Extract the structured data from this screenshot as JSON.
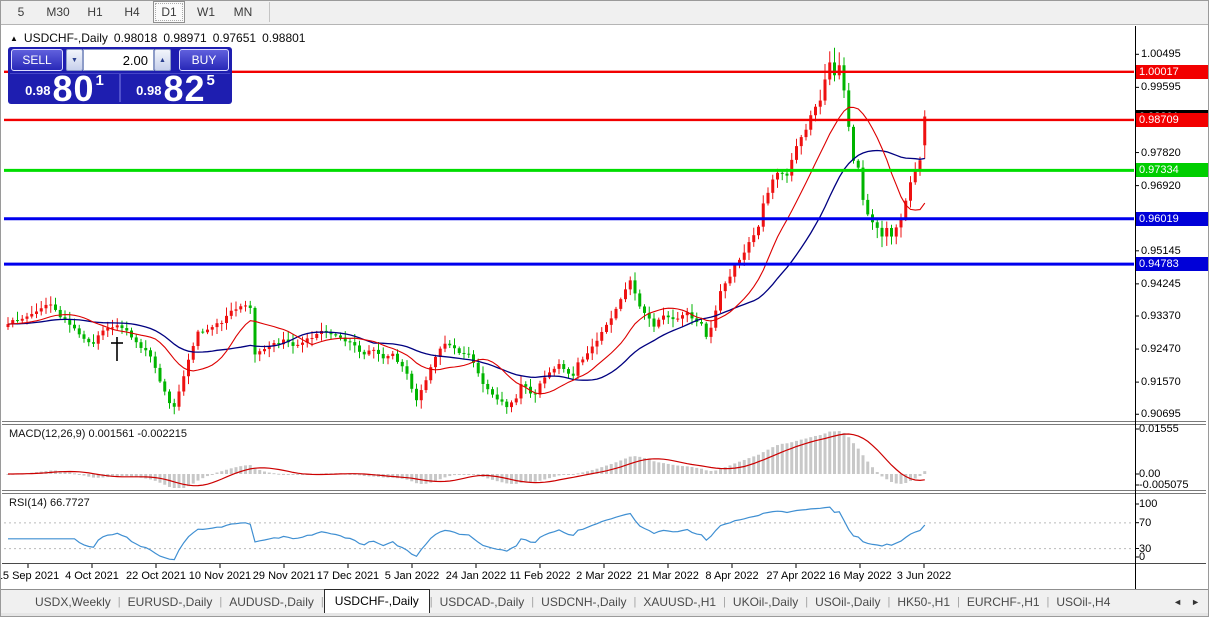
{
  "toolbar": {
    "timeframes": [
      {
        "label": "5",
        "active": false
      },
      {
        "label": "M30",
        "active": false
      },
      {
        "label": "H1",
        "active": false
      },
      {
        "label": "H4",
        "active": false
      },
      {
        "label": "D1",
        "active": true
      },
      {
        "label": "W1",
        "active": false
      },
      {
        "label": "MN",
        "active": false
      }
    ]
  },
  "chart_header": {
    "collapse_icon": "▲",
    "symbol": "USDCHF-,Daily",
    "open": "0.98018",
    "high": "0.98971",
    "low": "0.97651",
    "close": "0.98801"
  },
  "trade_panel": {
    "sell_label": "SELL",
    "buy_label": "BUY",
    "volume": "2.00",
    "down_glyph": "▼",
    "up_glyph": "▲",
    "sell_price": {
      "prefix": "0.98",
      "big": "80",
      "sup": "1"
    },
    "buy_price": {
      "prefix": "0.98",
      "big": "82",
      "sup": "5"
    }
  },
  "indicators": {
    "macd_label": "MACD(12,26,9) 0.001561 -0.002215",
    "rsi_label": "RSI(14) 66.7727",
    "macd_axis": [
      "0.01555",
      "0.00",
      "-0.005075"
    ],
    "rsi_axis": [
      "100",
      "70",
      "30",
      "0"
    ]
  },
  "price_axis": {
    "labels": [
      {
        "text": "1.00495",
        "price": 1.00495,
        "style": "plain"
      },
      {
        "text": "0.99595",
        "price": 0.99595,
        "style": "plain"
      },
      {
        "text": "0.97820",
        "price": 0.9782,
        "style": "plain"
      },
      {
        "text": "0.96920",
        "price": 0.9692,
        "style": "plain"
      },
      {
        "text": "0.95145",
        "price": 0.95145,
        "style": "plain"
      },
      {
        "text": "0.94245",
        "price": 0.94245,
        "style": "plain"
      },
      {
        "text": "0.93370",
        "price": 0.9337,
        "style": "plain"
      },
      {
        "text": "0.92470",
        "price": 0.9247,
        "style": "plain"
      },
      {
        "text": "0.91570",
        "price": 0.9157,
        "style": "plain"
      },
      {
        "text": "0.90695",
        "price": 0.90695,
        "style": "plain"
      },
      {
        "text": "0.98801",
        "price": 0.98801,
        "style": "black"
      },
      {
        "text": "1.00017",
        "price": 1.00017,
        "style": "red"
      },
      {
        "text": "0.98709",
        "price": 0.98709,
        "style": "red"
      },
      {
        "text": "0.97334",
        "price": 0.97334,
        "style": "green"
      },
      {
        "text": "0.96019",
        "price": 0.96019,
        "style": "blue"
      },
      {
        "text": "0.94783",
        "price": 0.94783,
        "style": "blue"
      }
    ]
  },
  "levels": [
    {
      "price": 1.00017,
      "color": "#f20000",
      "width": 2.4
    },
    {
      "price": 0.98709,
      "color": "#f20000",
      "width": 2.4
    },
    {
      "price": 0.97334,
      "color": "#00dd00",
      "width": 3
    },
    {
      "price": 0.96019,
      "color": "#0000ee",
      "width": 3
    },
    {
      "price": 0.94783,
      "color": "#0000ee",
      "width": 3
    }
  ],
  "time_axis": {
    "dates": [
      "15 Sep 2021",
      "4 Oct 2021",
      "22 Oct 2021",
      "10 Nov 2021",
      "29 Nov 2021",
      "17 Dec 2021",
      "5 Jan 2022",
      "24 Jan 2022",
      "11 Feb 2022",
      "2 Mar 2022",
      "21 Mar 2022",
      "8 Apr 2022",
      "27 Apr 2022",
      "16 May 2022",
      "3 Jun 2022"
    ]
  },
  "tabs": {
    "separator": "|",
    "nav_left": "◄",
    "nav_right": "►",
    "items": [
      {
        "label": "USDX,Weekly",
        "active": false
      },
      {
        "label": "EURUSD-,Daily",
        "active": false
      },
      {
        "label": "AUDUSD-,Daily",
        "active": false
      },
      {
        "label": "USDCHF-,Daily",
        "active": true
      },
      {
        "label": "USDCAD-,Daily",
        "active": false
      },
      {
        "label": "USDCNH-,Daily",
        "active": false
      },
      {
        "label": "XAUUSD-,H1",
        "active": false
      },
      {
        "label": "UKOil-,Daily",
        "active": false
      },
      {
        "label": "USOil-,Daily",
        "active": false
      },
      {
        "label": "HK50-,H1",
        "active": false
      },
      {
        "label": "EURCHF-,H1",
        "active": false
      },
      {
        "label": "USOil-,H4",
        "active": false
      }
    ]
  },
  "series": {
    "count": 194,
    "last_candle": {
      "open": 0.98018,
      "high": 0.98971,
      "low": 0.97651,
      "close": 0.98801
    },
    "anchors": [
      [
        0,
        0.9315
      ],
      [
        2,
        0.933
      ],
      [
        5,
        0.9342
      ],
      [
        9,
        0.9368
      ],
      [
        10,
        0.9352
      ],
      [
        13,
        0.931
      ],
      [
        16,
        0.928
      ],
      [
        18,
        0.9262
      ],
      [
        20,
        0.93
      ],
      [
        23,
        0.9312
      ],
      [
        25,
        0.9296
      ],
      [
        28,
        0.9252
      ],
      [
        30,
        0.923
      ],
      [
        32,
        0.916
      ],
      [
        34,
        0.91
      ],
      [
        35,
        0.9086
      ],
      [
        36,
        0.913
      ],
      [
        38,
        0.922
      ],
      [
        40,
        0.9292
      ],
      [
        43,
        0.9305
      ],
      [
        45,
        0.9322
      ],
      [
        47,
        0.9355
      ],
      [
        50,
        0.9368
      ],
      [
        51,
        0.9358
      ],
      [
        52,
        0.923
      ],
      [
        54,
        0.9242
      ],
      [
        56,
        0.9262
      ],
      [
        58,
        0.9268
      ],
      [
        60,
        0.9255
      ],
      [
        63,
        0.9272
      ],
      [
        65,
        0.9288
      ],
      [
        67,
        0.9296
      ],
      [
        69,
        0.9285
      ],
      [
        71,
        0.927
      ],
      [
        73,
        0.9256
      ],
      [
        75,
        0.9232
      ],
      [
        77,
        0.9243
      ],
      [
        79,
        0.9226
      ],
      [
        81,
        0.923
      ],
      [
        84,
        0.9182
      ],
      [
        85,
        0.9138
      ],
      [
        86,
        0.9112
      ],
      [
        88,
        0.916
      ],
      [
        89,
        0.92
      ],
      [
        91,
        0.925
      ],
      [
        93,
        0.9262
      ],
      [
        94,
        0.9246
      ],
      [
        96,
        0.923
      ],
      [
        97,
        0.9233
      ],
      [
        99,
        0.9182
      ],
      [
        100,
        0.9152
      ],
      [
        102,
        0.9126
      ],
      [
        104,
        0.91
      ],
      [
        105,
        0.9086
      ],
      [
        107,
        0.9112
      ],
      [
        108,
        0.915
      ],
      [
        109,
        0.914
      ],
      [
        111,
        0.912
      ],
      [
        112,
        0.9152
      ],
      [
        114,
        0.918
      ],
      [
        116,
        0.92
      ],
      [
        117,
        0.919
      ],
      [
        119,
        0.9176
      ],
      [
        120,
        0.921
      ],
      [
        123,
        0.925
      ],
      [
        125,
        0.929
      ],
      [
        127,
        0.933
      ],
      [
        129,
        0.9382
      ],
      [
        131,
        0.9432
      ],
      [
        132,
        0.94
      ],
      [
        133,
        0.9362
      ],
      [
        135,
        0.933
      ],
      [
        136,
        0.9312
      ],
      [
        138,
        0.934
      ],
      [
        139,
        0.933
      ],
      [
        141,
        0.9326
      ],
      [
        143,
        0.9342
      ],
      [
        144,
        0.933
      ],
      [
        146,
        0.9312
      ],
      [
        147,
        0.9282
      ],
      [
        148,
        0.9302
      ],
      [
        149,
        0.935
      ],
      [
        150,
        0.9402
      ],
      [
        152,
        0.9446
      ],
      [
        153,
        0.9472
      ],
      [
        155,
        0.9506
      ],
      [
        156,
        0.954
      ],
      [
        158,
        0.9582
      ],
      [
        159,
        0.9642
      ],
      [
        161,
        0.9706
      ],
      [
        162,
        0.9732
      ],
      [
        164,
        0.9722
      ],
      [
        165,
        0.9762
      ],
      [
        166,
        0.98
      ],
      [
        168,
        0.9846
      ],
      [
        169,
        0.9882
      ],
      [
        171,
        0.9926
      ],
      [
        172,
        0.9982
      ],
      [
        173,
        1.0022
      ],
      [
        174,
        0.9996
      ],
      [
        175,
        1.0016
      ],
      [
        176,
        0.9952
      ],
      [
        177,
        0.9852
      ],
      [
        178,
        0.9762
      ],
      [
        179,
        0.9742
      ],
      [
        180,
        0.9652
      ],
      [
        181,
        0.9616
      ],
      [
        183,
        0.9576
      ],
      [
        184,
        0.9552
      ],
      [
        185,
        0.9582
      ],
      [
        186,
        0.9556
      ],
      [
        187,
        0.9576
      ],
      [
        188,
        0.9606
      ],
      [
        189,
        0.9652
      ],
      [
        190,
        0.9702
      ],
      [
        191,
        0.9737
      ],
      [
        192,
        0.9762
      ],
      [
        193,
        0.98801
      ]
    ]
  },
  "colors": {
    "up": "#ee1111",
    "down": "#00b400",
    "ma_fast": "#dd0000",
    "ma_slow": "#000080",
    "hist": "#c8c8c8",
    "signal": "#cc0000",
    "rsi": "#3f8fd2",
    "rsi_level": "#bbbbbb",
    "tag_red": "#f20000",
    "tag_green": "#00ce00",
    "tag_blue": "#0000d8",
    "tag_black": "#000000"
  }
}
